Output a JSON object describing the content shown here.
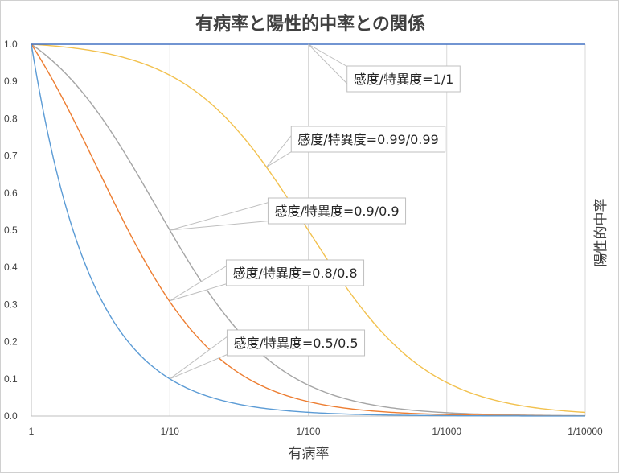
{
  "chart_data": {
    "type": "line",
    "title": "有病率と陽性的中率との関係",
    "xlabel": "有病率",
    "ylabel": "陽性的中率",
    "x_scale": "log, reversed",
    "x": [
      1,
      0.1,
      0.01,
      0.001,
      0.0001
    ],
    "x_tick_labels": [
      "1",
      "1/10",
      "1/100",
      "1/1000",
      "1/10000"
    ],
    "ylim": [
      0,
      1
    ],
    "y_ticks": [
      0,
      0.1,
      0.2,
      0.3,
      0.4,
      0.5,
      0.6,
      0.7,
      0.8,
      0.9,
      1.0
    ],
    "y_tick_labels": [
      "0.0",
      "0.1",
      "0.2",
      "0.3",
      "0.4",
      "0.5",
      "0.6",
      "0.7",
      "0.8",
      "0.9",
      "1.0"
    ],
    "grid": "vertical at x ticks",
    "legend": "callout labels",
    "series": [
      {
        "name": "感度/特異度=1/1",
        "values": [
          1.0,
          1.0,
          1.0,
          1.0,
          1.0
        ],
        "color": "#4472c4"
      },
      {
        "name": "感度/特異度=0.99/0.99",
        "values": [
          1.0,
          0.917,
          0.5,
          0.09,
          0.0098
        ],
        "color": "#f2c14e"
      },
      {
        "name": "感度/特異度=0.9/0.9",
        "values": [
          1.0,
          0.5,
          0.0833,
          0.009,
          0.0009
        ],
        "color": "#a5a5a5"
      },
      {
        "name": "感度/特異度=0.8/0.8",
        "values": [
          1.0,
          0.308,
          0.0388,
          0.004,
          0.0004
        ],
        "color": "#ed7d31"
      },
      {
        "name": "感度/特異度=0.5/0.5",
        "values": [
          1.0,
          0.1,
          0.01,
          0.001,
          0.0001
        ],
        "color": "#5b9bd5"
      }
    ],
    "callouts": [
      {
        "text": "感度/特異度=1/1",
        "series": 0,
        "x": 0.01,
        "y": 1.0
      },
      {
        "text": "感度/特異度=0.99/0.99",
        "series": 1,
        "x": 0.02,
        "y": 0.67
      },
      {
        "text": "感度/特異度=0.9/0.9",
        "series": 2,
        "x": 0.1,
        "y": 0.5
      },
      {
        "text": "感度/特異度=0.8/0.8",
        "series": 3,
        "x": 0.1,
        "y": 0.31
      },
      {
        "text": "感度/特異度=0.5/0.5",
        "series": 4,
        "x": 0.1,
        "y": 0.1
      }
    ]
  }
}
